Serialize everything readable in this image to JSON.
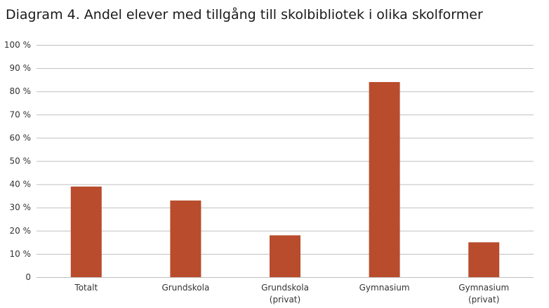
{
  "chart_data": {
    "type": "bar",
    "title": "Diagram 4. Andel elever med tillgång till skolbibliotek i olika skolformer",
    "categories": [
      [
        "Totalt"
      ],
      [
        "Grundskola"
      ],
      [
        "Grundskola",
        "(privat)"
      ],
      [
        "Gymnasium"
      ],
      [
        "Gymnasium",
        "(privat)"
      ]
    ],
    "values": [
      39,
      33,
      18,
      84,
      15
    ],
    "ylim": [
      0,
      100
    ],
    "yticks": [
      0,
      10,
      20,
      30,
      40,
      50,
      60,
      70,
      80,
      90,
      100
    ],
    "ytick_labels": [
      "0",
      "10 %",
      "20 %",
      "30 %",
      "40 %",
      "50 %",
      "60 %",
      "70 %",
      "80 %",
      "90 %",
      "100 %"
    ],
    "grid": true,
    "legend": "none",
    "bar_color": "#b84c2c",
    "grid_color": "#bfbfbf"
  }
}
